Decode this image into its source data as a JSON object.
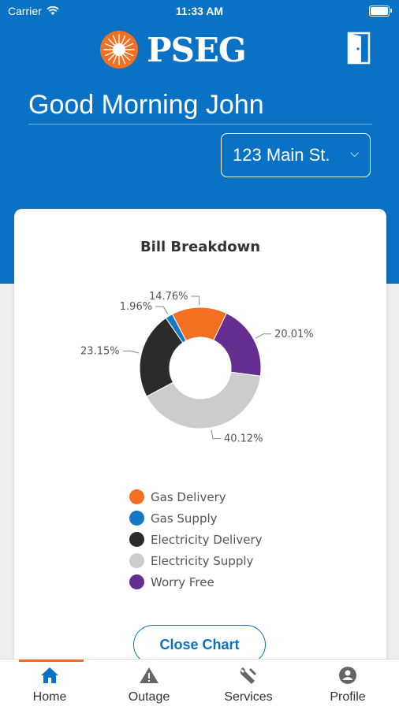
{
  "status_bar": {
    "carrier": "Carrier",
    "time": "11:33 AM"
  },
  "header": {
    "logo_text": "PSEG",
    "greeting": "Good Morning John",
    "address": "123 Main St."
  },
  "colors": {
    "brand_blue": "#0a72c4",
    "accent_orange": "#f36f21"
  },
  "chart_data": {
    "type": "pie",
    "title": "Bill Breakdown",
    "donut": true,
    "slices": [
      {
        "name": "Gas Delivery",
        "value": 14.76,
        "label": "14.76%",
        "color": "#f36f21"
      },
      {
        "name": "Worry Free",
        "value": 20.01,
        "label": "20.01%",
        "color": "#662d91"
      },
      {
        "name": "Electricity Supply",
        "value": 40.12,
        "label": "40.12%",
        "color": "#cccccc"
      },
      {
        "name": "Electricity Delivery",
        "value": 23.15,
        "label": "23.15%",
        "color": "#2b2b2b"
      },
      {
        "name": "Gas Supply",
        "value": 1.96,
        "label": "1.96%",
        "color": "#1479c4"
      }
    ],
    "legend": [
      "Gas Delivery",
      "Gas Supply",
      "Electricity Delivery",
      "Electricity Supply",
      "Worry Free"
    ],
    "legend_placement": "bottom"
  },
  "legend": [
    {
      "label": "Gas Delivery",
      "color": "#f36f21"
    },
    {
      "label": "Gas Supply",
      "color": "#1479c4"
    },
    {
      "label": "Electricity Delivery",
      "color": "#2b2b2b"
    },
    {
      "label": "Electricity Supply",
      "color": "#cccccc"
    },
    {
      "label": "Worry Free",
      "color": "#662d91"
    }
  ],
  "card": {
    "close_label": "Close Chart"
  },
  "tabbar": {
    "active": "home",
    "items": [
      {
        "label": "Home",
        "icon": "home-icon"
      },
      {
        "label": "Outage",
        "icon": "warning-icon"
      },
      {
        "label": "Services",
        "icon": "wrench-icon"
      },
      {
        "label": "Profile",
        "icon": "profile-icon"
      }
    ]
  }
}
